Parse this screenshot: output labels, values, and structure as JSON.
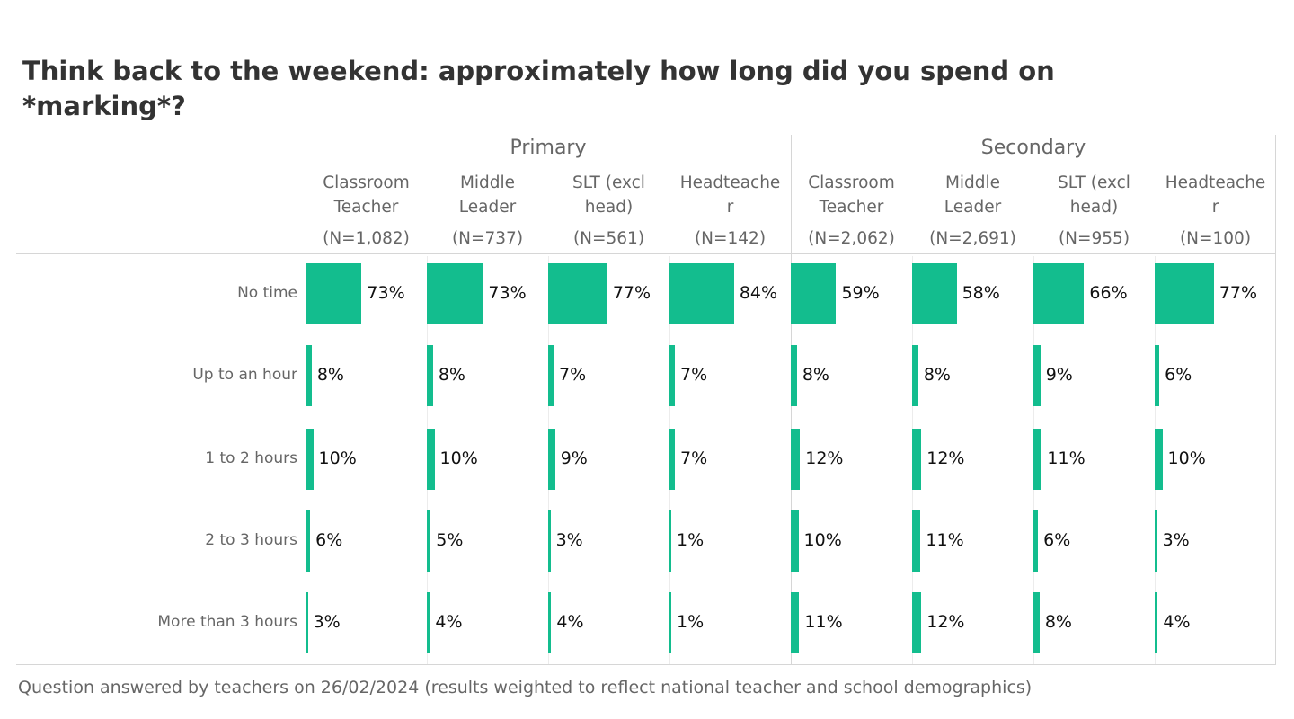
{
  "title": "Think back to the weekend: approximately how long did you spend on *marking*?",
  "footer": "Question answered by  teachers on 26/02/2024 (results weighted to reflect national teacher and school demographics)",
  "colors": {
    "bar": "#13bd8e"
  },
  "chart_data": {
    "type": "bar",
    "title": "Think back to the weekend: approximately how long did you spend on *marking*?",
    "groups": [
      "Primary",
      "Secondary"
    ],
    "columns": [
      {
        "group": "Primary",
        "label": "Classroom Teacher",
        "label_lines": [
          "Classroom",
          "Teacher"
        ],
        "n": "(N=1,082)"
      },
      {
        "group": "Primary",
        "label": "Middle Leader",
        "label_lines": [
          "Middle",
          "Leader"
        ],
        "n": "(N=737)"
      },
      {
        "group": "Primary",
        "label": "SLT (excl head)",
        "label_lines": [
          "SLT (excl",
          "head)"
        ],
        "n": "(N=561)"
      },
      {
        "group": "Primary",
        "label": "Headteacher",
        "label_lines": [
          "Headteache",
          "r"
        ],
        "n": "(N=142)"
      },
      {
        "group": "Secondary",
        "label": "Classroom Teacher",
        "label_lines": [
          "Classroom",
          "Teacher"
        ],
        "n": "(N=2,062)"
      },
      {
        "group": "Secondary",
        "label": "Middle Leader",
        "label_lines": [
          "Middle",
          "Leader"
        ],
        "n": "(N=2,691)"
      },
      {
        "group": "Secondary",
        "label": "SLT (excl head)",
        "label_lines": [
          "SLT (excl",
          "head)"
        ],
        "n": "(N=955)"
      },
      {
        "group": "Secondary",
        "label": "Headteacher",
        "label_lines": [
          "Headteache",
          "r"
        ],
        "n": "(N=100)"
      }
    ],
    "categories": [
      "No time",
      "Up to an hour",
      "1 to 2 hours",
      "2 to 3 hours",
      "More than 3 hours"
    ],
    "values": [
      [
        73,
        73,
        77,
        84,
        59,
        58,
        66,
        77
      ],
      [
        8,
        8,
        7,
        7,
        8,
        8,
        9,
        6
      ],
      [
        10,
        10,
        9,
        7,
        12,
        12,
        11,
        10
      ],
      [
        6,
        5,
        3,
        1,
        10,
        11,
        6,
        3
      ],
      [
        3,
        4,
        4,
        1,
        11,
        12,
        8,
        4
      ]
    ],
    "unit": "%",
    "xlim": [
      0,
      100
    ]
  }
}
